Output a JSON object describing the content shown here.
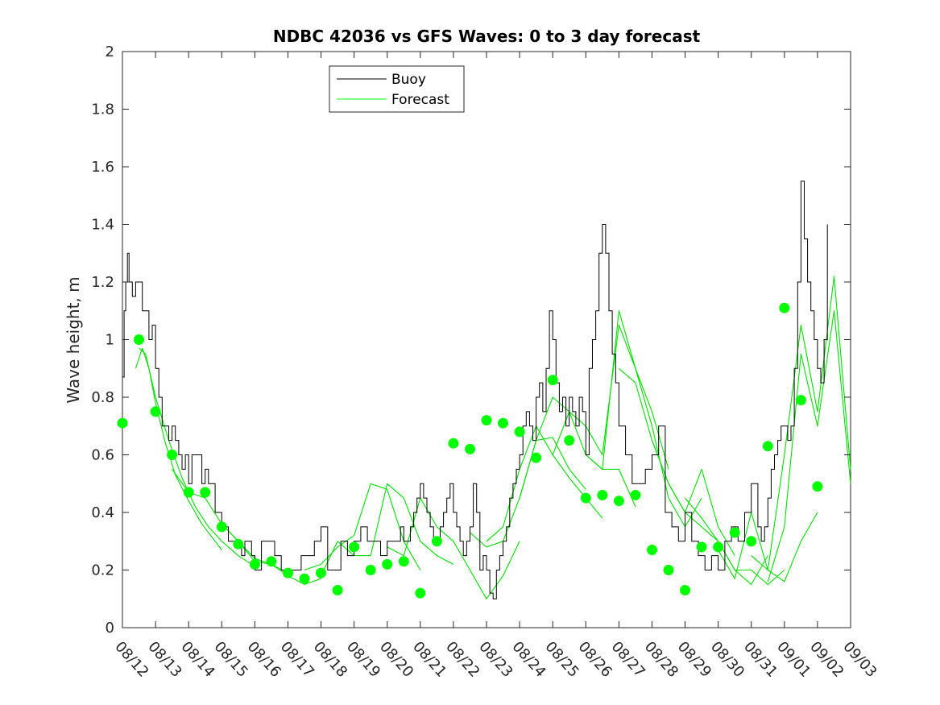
{
  "chart_data": {
    "type": "line",
    "title": "NDBC 42036 vs GFS Waves: 0 to 3 day forecast",
    "xlabel": "",
    "ylabel": "Wave height, m",
    "xlim": [
      0,
      22
    ],
    "ylim": [
      0,
      2
    ],
    "y_ticks": [
      "0",
      "0.2",
      "0.4",
      "0.6",
      "0.8",
      "1",
      "1.2",
      "1.4",
      "1.6",
      "1.8",
      "2"
    ],
    "x_tick_labels": [
      "08/12",
      "08/13",
      "08/14",
      "08/15",
      "08/16",
      "08/17",
      "08/18",
      "08/19",
      "08/20",
      "08/21",
      "08/22",
      "08/23",
      "08/24",
      "08/25",
      "08/26",
      "08/27",
      "08/28",
      "08/29",
      "08/30",
      "08/31",
      "09/01",
      "09/02",
      "09/03"
    ],
    "legend": {
      "position": "top-center",
      "entries": [
        {
          "label": "Buoy",
          "color": "#000000"
        },
        {
          "label": "Forecast",
          "color": "#00ff00"
        }
      ]
    },
    "colors": {
      "buoy": "#000000",
      "forecast": "#00e000",
      "marker": "#00ff00",
      "axes": "#262626"
    },
    "buoy": {
      "name": "Buoy",
      "x": [
        0,
        0.05,
        0.1,
        0.15,
        0.2,
        0.3,
        0.4,
        0.5,
        0.6,
        0.7,
        0.8,
        0.9,
        1.0,
        1.1,
        1.2,
        1.3,
        1.4,
        1.5,
        1.6,
        1.7,
        1.8,
        1.9,
        2.0,
        2.1,
        2.2,
        2.3,
        2.4,
        2.5,
        2.6,
        2.7,
        2.8,
        2.9,
        3.0,
        3.1,
        3.2,
        3.3,
        3.4,
        3.5,
        3.6,
        3.7,
        3.8,
        3.9,
        4.0,
        4.2,
        4.4,
        4.6,
        4.8,
        5.0,
        5.2,
        5.4,
        5.6,
        5.8,
        6.0,
        6.2,
        6.4,
        6.6,
        6.8,
        7.0,
        7.2,
        7.4,
        7.6,
        7.8,
        8.0,
        8.2,
        8.4,
        8.5,
        8.6,
        8.7,
        8.8,
        8.9,
        9.0,
        9.1,
        9.2,
        9.3,
        9.4,
        9.5,
        9.6,
        9.7,
        9.8,
        9.9,
        10.0,
        10.1,
        10.2,
        10.3,
        10.4,
        10.5,
        10.6,
        10.7,
        10.8,
        10.9,
        11.0,
        11.1,
        11.2,
        11.3,
        11.4,
        11.5,
        11.6,
        11.7,
        11.8,
        11.9,
        12.0,
        12.1,
        12.2,
        12.3,
        12.4,
        12.5,
        12.6,
        12.7,
        12.8,
        12.9,
        13.0,
        13.1,
        13.2,
        13.3,
        13.4,
        13.5,
        13.6,
        13.7,
        13.8,
        13.9,
        14.0,
        14.1,
        14.2,
        14.3,
        14.4,
        14.5,
        14.6,
        14.7,
        14.8,
        14.9,
        15.0,
        15.2,
        15.4,
        15.6,
        15.8,
        16.0,
        16.2,
        16.4,
        16.6,
        16.8,
        17.0,
        17.2,
        17.4,
        17.6,
        17.8,
        18.0,
        18.2,
        18.4,
        18.6,
        18.8,
        19.0,
        19.2,
        19.3,
        19.4,
        19.5,
        19.6,
        19.7,
        19.8,
        19.9,
        20.0,
        20.1,
        20.2,
        20.3,
        20.4,
        20.5,
        20.6,
        20.7,
        20.8,
        20.9,
        21.0,
        21.1,
        21.2,
        21.3
      ],
      "values": [
        0.87,
        1.1,
        1.2,
        1.3,
        1.2,
        1.15,
        1.2,
        1.2,
        1.1,
        1.1,
        1.0,
        1.05,
        0.9,
        0.8,
        0.7,
        0.7,
        0.65,
        0.7,
        0.65,
        0.6,
        0.55,
        0.6,
        0.5,
        0.6,
        0.6,
        0.6,
        0.5,
        0.55,
        0.5,
        0.5,
        0.4,
        0.4,
        0.35,
        0.35,
        0.3,
        0.3,
        0.3,
        0.3,
        0.25,
        0.3,
        0.3,
        0.25,
        0.2,
        0.3,
        0.3,
        0.25,
        0.2,
        0.2,
        0.2,
        0.25,
        0.25,
        0.3,
        0.35,
        0.2,
        0.2,
        0.3,
        0.25,
        0.3,
        0.35,
        0.3,
        0.3,
        0.25,
        0.3,
        0.3,
        0.35,
        0.3,
        0.3,
        0.35,
        0.4,
        0.45,
        0.5,
        0.45,
        0.4,
        0.35,
        0.3,
        0.3,
        0.35,
        0.4,
        0.45,
        0.5,
        0.4,
        0.35,
        0.3,
        0.25,
        0.3,
        0.35,
        0.5,
        0.4,
        0.2,
        0.25,
        0.2,
        0.12,
        0.1,
        0.2,
        0.25,
        0.3,
        0.35,
        0.45,
        0.5,
        0.55,
        0.6,
        0.7,
        0.75,
        0.7,
        0.65,
        0.8,
        0.85,
        0.75,
        0.9,
        1.1,
        1.0,
        0.85,
        0.75,
        0.8,
        0.7,
        0.8,
        0.75,
        0.7,
        0.8,
        0.75,
        0.6,
        0.9,
        1.0,
        1.1,
        1.3,
        1.4,
        1.3,
        1.1,
        0.95,
        0.85,
        0.7,
        0.6,
        0.5,
        0.5,
        0.55,
        0.6,
        0.7,
        0.4,
        0.35,
        0.3,
        0.4,
        0.3,
        0.25,
        0.2,
        0.25,
        0.2,
        0.3,
        0.35,
        0.3,
        0.4,
        0.5,
        0.35,
        0.3,
        0.35,
        0.45,
        0.55,
        0.6,
        0.65,
        0.7,
        0.7,
        0.65,
        0.7,
        0.9,
        1.2,
        1.55,
        1.35,
        1.2,
        1.1,
        1.0,
        0.9,
        0.85,
        1.0,
        1.4
      ]
    },
    "forecast_series": [
      {
        "name": "Forecast",
        "x": [
          0.4,
          0.6,
          0.8,
          1.0,
          1.3,
          1.6,
          2.0,
          2.4,
          2.8,
          3.0
        ],
        "values": [
          0.9,
          0.97,
          0.9,
          0.78,
          0.64,
          0.53,
          0.44,
          0.36,
          0.3,
          0.27
        ]
      },
      {
        "name": "Forecast",
        "x": [
          0.5,
          0.7,
          1.0,
          1.4,
          1.8,
          2.2,
          2.6,
          3.0,
          3.5,
          3.9
        ],
        "values": [
          0.97,
          0.95,
          0.8,
          0.65,
          0.52,
          0.42,
          0.35,
          0.3,
          0.25,
          0.22
        ]
      },
      {
        "name": "Forecast",
        "x": [
          1.5,
          2.0,
          2.5,
          3.0,
          3.5,
          4.0,
          4.5,
          5.0
        ],
        "values": [
          0.55,
          0.47,
          0.45,
          0.36,
          0.3,
          0.24,
          0.22,
          0.19
        ]
      },
      {
        "name": "Forecast",
        "x": [
          3.0,
          3.5,
          4.0,
          4.5,
          5.0,
          5.5,
          6.0
        ],
        "values": [
          0.36,
          0.3,
          0.23,
          0.22,
          0.18,
          0.15,
          0.17
        ]
      },
      {
        "name": "Forecast",
        "x": [
          5.5,
          6.0,
          6.5,
          7.0,
          7.5,
          8.0,
          8.5,
          9.0
        ],
        "values": [
          0.2,
          0.22,
          0.28,
          0.32,
          0.5,
          0.48,
          0.3,
          0.2
        ]
      },
      {
        "name": "Forecast",
        "x": [
          6.0,
          6.5,
          7.0,
          7.5,
          8.0,
          8.5,
          9.0,
          9.5,
          10.0
        ],
        "values": [
          0.18,
          0.3,
          0.25,
          0.25,
          0.5,
          0.45,
          0.3,
          0.25,
          0.22
        ]
      },
      {
        "name": "Forecast",
        "x": [
          8.0,
          8.5,
          9.0,
          9.5,
          10.0,
          10.5,
          11.0,
          11.5,
          12.0
        ],
        "values": [
          0.28,
          0.25,
          0.45,
          0.35,
          0.3,
          0.2,
          0.1,
          0.18,
          0.3
        ]
      },
      {
        "name": "Forecast",
        "x": [
          10.5,
          11.0,
          11.5,
          12.0,
          12.5,
          13.0,
          13.5,
          14.0
        ],
        "values": [
          0.33,
          0.28,
          0.3,
          0.45,
          0.65,
          0.66,
          0.55,
          0.48
        ]
      },
      {
        "name": "Forecast",
        "x": [
          11.0,
          11.5,
          12.0,
          12.5,
          13.0,
          13.5,
          14.0,
          14.5
        ],
        "values": [
          0.3,
          0.35,
          0.55,
          0.7,
          0.6,
          0.52,
          0.45,
          0.38
        ]
      },
      {
        "name": "Forecast",
        "x": [
          12.0,
          12.5,
          13.0,
          13.5,
          14.0,
          14.5,
          15.0,
          15.5
        ],
        "values": [
          0.45,
          0.65,
          0.8,
          0.75,
          0.6,
          0.55,
          0.55,
          0.42
        ]
      },
      {
        "name": "Forecast",
        "x": [
          13.0,
          13.5,
          14.0,
          14.5,
          15.0,
          15.5,
          16.0,
          16.5
        ],
        "values": [
          0.6,
          0.75,
          0.7,
          0.6,
          1.05,
          0.9,
          0.75,
          0.55
        ]
      },
      {
        "name": "Forecast",
        "x": [
          14.0,
          14.5,
          15.0,
          15.5,
          16.0,
          16.5,
          17.0,
          17.5
        ],
        "values": [
          0.6,
          0.55,
          1.1,
          0.9,
          0.7,
          0.45,
          0.35,
          0.45
        ]
      },
      {
        "name": "Forecast",
        "x": [
          15.0,
          15.5,
          16.0,
          16.5,
          17.0,
          17.5,
          18.0,
          18.5
        ],
        "values": [
          0.9,
          0.85,
          0.65,
          0.5,
          0.4,
          0.55,
          0.35,
          0.25
        ]
      },
      {
        "name": "Forecast",
        "x": [
          16.0,
          16.5,
          17.0,
          17.5,
          18.0,
          18.5,
          19.0,
          19.5
        ],
        "values": [
          0.65,
          0.5,
          0.4,
          0.35,
          0.3,
          0.2,
          0.15,
          0.25
        ]
      },
      {
        "name": "Forecast",
        "x": [
          17.0,
          17.5,
          18.0,
          18.5,
          19.0,
          19.5,
          20.0
        ],
        "values": [
          0.45,
          0.38,
          0.3,
          0.2,
          0.2,
          0.15,
          0.2
        ]
      },
      {
        "name": "Forecast",
        "x": [
          18.0,
          18.5,
          19.0,
          19.5,
          20.0,
          20.5,
          21.0
        ],
        "values": [
          0.27,
          0.17,
          0.4,
          0.2,
          0.16,
          0.3,
          0.4
        ]
      },
      {
        "name": "Forecast",
        "x": [
          19.0,
          19.5,
          20.0,
          20.5,
          21.0,
          21.5,
          22.0
        ],
        "values": [
          0.25,
          0.2,
          0.6,
          1.05,
          0.75,
          1.22,
          0.55
        ]
      },
      {
        "name": "Forecast",
        "x": [
          19.5,
          20.0,
          20.5,
          21.0,
          21.5,
          22.0
        ],
        "values": [
          0.16,
          0.35,
          0.95,
          0.7,
          1.1,
          0.5
        ]
      }
    ],
    "markers": {
      "name": "Forecast 0-h",
      "x": [
        0,
        0.5,
        1,
        1.5,
        2,
        2.5,
        3,
        3.5,
        4,
        4.5,
        5,
        5.5,
        6,
        6.5,
        7,
        7.5,
        8,
        8.5,
        9,
        9.5,
        10,
        10.5,
        11,
        11.5,
        12,
        12.5,
        13,
        13.5,
        14,
        14.5,
        15,
        15.5,
        16,
        16.5,
        17,
        17.5,
        18,
        18.5,
        19,
        19.5,
        20,
        20.5,
        21
      ],
      "values": [
        0.71,
        1.0,
        0.75,
        0.6,
        0.47,
        0.47,
        0.35,
        0.29,
        0.22,
        0.23,
        0.19,
        0.17,
        0.19,
        0.13,
        0.28,
        0.2,
        0.22,
        0.23,
        0.12,
        0.3,
        0.64,
        0.62,
        0.72,
        0.71,
        0.68,
        0.59,
        0.86,
        0.65,
        0.45,
        0.46,
        0.44,
        0.46,
        0.27,
        0.2,
        0.13,
        0.28,
        0.28,
        0.33,
        0.3,
        0.63,
        1.11,
        0.79,
        0.49
      ]
    }
  }
}
